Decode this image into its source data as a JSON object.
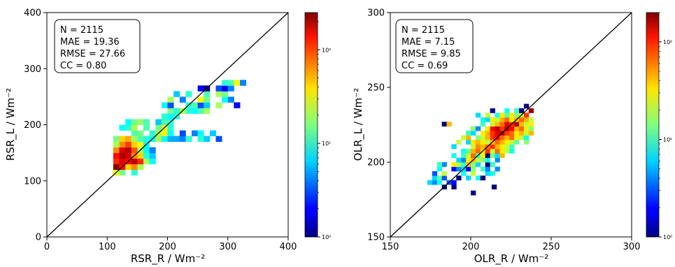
{
  "chart_data": [
    {
      "type": "heatmap",
      "title": "",
      "xlabel": "RSR_R / Wm⁻²",
      "ylabel": "RSR_L / Wm⁻²",
      "xlim": [
        0,
        400
      ],
      "ylim": [
        0,
        400
      ],
      "xticks": [
        "0",
        "100",
        "200",
        "300",
        "400"
      ],
      "yticks": [
        "0",
        "100",
        "200",
        "300",
        "400"
      ],
      "identity_line": true,
      "grid": false,
      "stats": [
        "N = 2115",
        "MAE = 19.36",
        "RMSE = 27.66",
        "CC = 0.80"
      ],
      "stats_position": "top-left",
      "colorbar": {
        "scale": "log",
        "min": 1,
        "max": 250,
        "labels": [
          "10⁰",
          "10¹",
          "10²"
        ],
        "cmap": "jet"
      },
      "bin_size": 10,
      "cells": [
        [
          110,
          110,
          30
        ],
        [
          120,
          110,
          15
        ],
        [
          140,
          110,
          10
        ],
        [
          110,
          120,
          250
        ],
        [
          120,
          120,
          120
        ],
        [
          130,
          120,
          40
        ],
        [
          140,
          120,
          60
        ],
        [
          150,
          120,
          20
        ],
        [
          110,
          130,
          100
        ],
        [
          120,
          130,
          150
        ],
        [
          130,
          130,
          120
        ],
        [
          140,
          130,
          180
        ],
        [
          150,
          130,
          100
        ],
        [
          160,
          130,
          20
        ],
        [
          170,
          130,
          8
        ],
        [
          110,
          140,
          120
        ],
        [
          120,
          140,
          200
        ],
        [
          130,
          140,
          160
        ],
        [
          140,
          140,
          60
        ],
        [
          150,
          140,
          40
        ],
        [
          160,
          140,
          10
        ],
        [
          170,
          140,
          6
        ],
        [
          110,
          150,
          60
        ],
        [
          120,
          150,
          150
        ],
        [
          130,
          150,
          190
        ],
        [
          140,
          150,
          80
        ],
        [
          150,
          150,
          20
        ],
        [
          160,
          150,
          8
        ],
        [
          170,
          150,
          4
        ],
        [
          110,
          160,
          20
        ],
        [
          120,
          160,
          60
        ],
        [
          130,
          160,
          90
        ],
        [
          140,
          160,
          40
        ],
        [
          150,
          160,
          30
        ],
        [
          160,
          160,
          8
        ],
        [
          110,
          170,
          15
        ],
        [
          120,
          170,
          40
        ],
        [
          130,
          170,
          50
        ],
        [
          140,
          170,
          20
        ],
        [
          150,
          170,
          12
        ],
        [
          160,
          170,
          10
        ],
        [
          170,
          170,
          8
        ],
        [
          180,
          170,
          20
        ],
        [
          190,
          170,
          8
        ],
        [
          200,
          170,
          5
        ],
        [
          210,
          170,
          5
        ],
        [
          220,
          170,
          4
        ],
        [
          230,
          170,
          10
        ],
        [
          250,
          170,
          10
        ],
        [
          260,
          170,
          6
        ],
        [
          280,
          170,
          3
        ],
        [
          140,
          180,
          12
        ],
        [
          150,
          180,
          15
        ],
        [
          170,
          180,
          10
        ],
        [
          180,
          180,
          20
        ],
        [
          190,
          180,
          30
        ],
        [
          200,
          180,
          8
        ],
        [
          220,
          180,
          3
        ],
        [
          240,
          180,
          4
        ],
        [
          250,
          180,
          8
        ],
        [
          270,
          180,
          6
        ],
        [
          120,
          190,
          8
        ],
        [
          130,
          190,
          10
        ],
        [
          140,
          190,
          20
        ],
        [
          160,
          190,
          12
        ],
        [
          180,
          190,
          15
        ],
        [
          190,
          190,
          30
        ],
        [
          200,
          190,
          10
        ],
        [
          130,
          200,
          8
        ],
        [
          140,
          200,
          15
        ],
        [
          150,
          200,
          18
        ],
        [
          160,
          200,
          12
        ],
        [
          180,
          200,
          6
        ],
        [
          190,
          200,
          12
        ],
        [
          200,
          200,
          10
        ],
        [
          190,
          210,
          10
        ],
        [
          200,
          210,
          8
        ],
        [
          210,
          210,
          10
        ],
        [
          200,
          220,
          15
        ],
        [
          210,
          220,
          10
        ],
        [
          220,
          220,
          20
        ],
        [
          230,
          220,
          10
        ],
        [
          240,
          220,
          8
        ],
        [
          250,
          220,
          12
        ],
        [
          260,
          220,
          20
        ],
        [
          190,
          230,
          8
        ],
        [
          200,
          230,
          3
        ],
        [
          230,
          230,
          10
        ],
        [
          240,
          230,
          12
        ],
        [
          250,
          230,
          3
        ],
        [
          260,
          230,
          6
        ],
        [
          280,
          230,
          20
        ],
        [
          310,
          230,
          2
        ],
        [
          200,
          240,
          20
        ],
        [
          220,
          240,
          4
        ],
        [
          250,
          240,
          30
        ],
        [
          260,
          240,
          15
        ],
        [
          290,
          240,
          8
        ],
        [
          300,
          240,
          4
        ],
        [
          210,
          250,
          6
        ],
        [
          230,
          250,
          10
        ],
        [
          260,
          250,
          12
        ],
        [
          280,
          250,
          20
        ],
        [
          290,
          250,
          15
        ],
        [
          250,
          260,
          2
        ],
        [
          260,
          260,
          1
        ],
        [
          280,
          260,
          3
        ],
        [
          290,
          260,
          2
        ],
        [
          300,
          260,
          4
        ],
        [
          290,
          270,
          10
        ],
        [
          300,
          270,
          12
        ],
        [
          310,
          270,
          30
        ],
        [
          320,
          270,
          4
        ]
      ]
    },
    {
      "type": "heatmap",
      "title": "",
      "xlabel": "OLR_R / Wm⁻²",
      "ylabel": "OLR_L / Wm⁻²",
      "xlim": [
        150,
        300
      ],
      "ylim": [
        150,
        300
      ],
      "xticks": [
        "150",
        "200",
        "250",
        "300"
      ],
      "yticks": [
        "150",
        "200",
        "250",
        "300"
      ],
      "identity_line": true,
      "grid": false,
      "stats": [
        "N = 2115",
        "MAE = 7.15",
        "RMSE = 9.85",
        "CC = 0.69"
      ],
      "stats_position": "top-left",
      "colorbar": {
        "scale": "log",
        "min": 1,
        "max": 200,
        "labels": [
          "10⁰",
          "10¹",
          "10²"
        ],
        "cmap": "jet"
      },
      "bin_size": 3,
      "cells": [
        [
          182,
          182,
          1
        ],
        [
          188,
          182,
          1
        ],
        [
          200,
          178,
          1
        ],
        [
          213,
          182,
          1
        ],
        [
          173,
          185,
          6
        ],
        [
          176,
          185,
          4
        ],
        [
          179,
          185,
          8
        ],
        [
          185,
          185,
          3
        ],
        [
          191,
          188,
          1
        ],
        [
          188,
          185,
          2
        ],
        [
          197,
          188,
          6
        ],
        [
          203,
          188,
          8
        ],
        [
          206,
          188,
          1
        ],
        [
          176,
          188,
          6
        ],
        [
          179,
          188,
          12
        ],
        [
          182,
          188,
          3
        ],
        [
          194,
          191,
          8
        ],
        [
          200,
          191,
          20
        ],
        [
          209,
          191,
          6
        ],
        [
          212,
          191,
          8
        ],
        [
          176,
          191,
          3
        ],
        [
          182,
          191,
          20
        ],
        [
          188,
          194,
          2
        ],
        [
          191,
          194,
          4
        ],
        [
          194,
          194,
          6
        ],
        [
          197,
          194,
          2
        ],
        [
          200,
          194,
          15
        ],
        [
          206,
          194,
          10
        ],
        [
          209,
          194,
          4
        ],
        [
          215,
          194,
          4
        ],
        [
          179,
          194,
          8
        ],
        [
          182,
          197,
          4
        ],
        [
          188,
          197,
          30
        ],
        [
          191,
          197,
          20
        ],
        [
          194,
          197,
          10
        ],
        [
          197,
          197,
          40
        ],
        [
          200,
          197,
          15
        ],
        [
          203,
          197,
          6
        ],
        [
          209,
          197,
          1
        ],
        [
          212,
          197,
          10
        ],
        [
          179,
          197,
          10
        ],
        [
          191,
          200,
          6
        ],
        [
          194,
          200,
          4
        ],
        [
          197,
          200,
          30
        ],
        [
          200,
          200,
          40
        ],
        [
          203,
          200,
          20
        ],
        [
          206,
          200,
          15
        ],
        [
          209,
          200,
          8
        ],
        [
          215,
          200,
          4
        ],
        [
          188,
          203,
          8
        ],
        [
          194,
          203,
          10
        ],
        [
          197,
          203,
          20
        ],
        [
          200,
          203,
          60
        ],
        [
          203,
          203,
          10
        ],
        [
          206,
          203,
          30
        ],
        [
          209,
          203,
          1
        ],
        [
          212,
          203,
          15
        ],
        [
          215,
          203,
          6
        ],
        [
          218,
          203,
          40
        ],
        [
          194,
          206,
          8
        ],
        [
          197,
          206,
          12
        ],
        [
          200,
          206,
          40
        ],
        [
          203,
          206,
          60
        ],
        [
          206,
          206,
          30
        ],
        [
          209,
          206,
          80
        ],
        [
          212,
          206,
          20
        ],
        [
          215,
          206,
          60
        ],
        [
          218,
          206,
          30
        ],
        [
          221,
          206,
          20
        ],
        [
          224,
          206,
          8
        ],
        [
          188,
          209,
          6
        ],
        [
          200,
          209,
          20
        ],
        [
          203,
          209,
          50
        ],
        [
          206,
          209,
          40
        ],
        [
          209,
          209,
          60
        ],
        [
          212,
          209,
          80
        ],
        [
          215,
          209,
          40
        ],
        [
          218,
          209,
          30
        ],
        [
          221,
          209,
          20
        ],
        [
          224,
          209,
          10
        ],
        [
          191,
          212,
          20
        ],
        [
          197,
          212,
          6
        ],
        [
          200,
          212,
          30
        ],
        [
          203,
          212,
          40
        ],
        [
          206,
          212,
          30
        ],
        [
          209,
          212,
          20
        ],
        [
          212,
          212,
          40
        ],
        [
          215,
          212,
          60
        ],
        [
          218,
          212,
          40
        ],
        [
          221,
          212,
          30
        ],
        [
          224,
          212,
          20
        ],
        [
          227,
          212,
          12
        ],
        [
          233,
          212,
          15
        ],
        [
          194,
          215,
          20
        ],
        [
          197,
          215,
          40
        ],
        [
          203,
          215,
          15
        ],
        [
          206,
          215,
          20
        ],
        [
          209,
          215,
          40
        ],
        [
          212,
          215,
          80
        ],
        [
          215,
          215,
          100
        ],
        [
          218,
          215,
          60
        ],
        [
          221,
          215,
          40
        ],
        [
          224,
          215,
          60
        ],
        [
          227,
          215,
          30
        ],
        [
          230,
          215,
          20
        ],
        [
          233,
          215,
          8
        ],
        [
          197,
          218,
          10
        ],
        [
          200,
          218,
          6
        ],
        [
          206,
          218,
          30
        ],
        [
          209,
          218,
          40
        ],
        [
          212,
          218,
          80
        ],
        [
          215,
          218,
          120
        ],
        [
          218,
          218,
          150
        ],
        [
          221,
          218,
          80
        ],
        [
          224,
          218,
          60
        ],
        [
          227,
          218,
          30
        ],
        [
          230,
          218,
          40
        ],
        [
          233,
          218,
          20
        ],
        [
          236,
          218,
          40
        ],
        [
          200,
          221,
          15
        ],
        [
          203,
          221,
          4
        ],
        [
          209,
          221,
          30
        ],
        [
          212,
          221,
          100
        ],
        [
          215,
          221,
          160
        ],
        [
          218,
          221,
          80
        ],
        [
          221,
          221,
          140
        ],
        [
          224,
          221,
          100
        ],
        [
          227,
          221,
          40
        ],
        [
          230,
          221,
          60
        ],
        [
          233,
          221,
          30
        ],
        [
          236,
          221,
          15
        ],
        [
          206,
          224,
          10
        ],
        [
          212,
          224,
          20
        ],
        [
          215,
          224,
          40
        ],
        [
          218,
          224,
          60
        ],
        [
          221,
          224,
          120
        ],
        [
          224,
          224,
          80
        ],
        [
          227,
          224,
          160
        ],
        [
          230,
          224,
          40
        ],
        [
          233,
          224,
          20
        ],
        [
          236,
          224,
          30
        ],
        [
          182,
          224,
          1
        ],
        [
          185,
          224,
          40
        ],
        [
          206,
          227,
          8
        ],
        [
          209,
          227,
          6
        ],
        [
          212,
          227,
          30
        ],
        [
          215,
          227,
          20
        ],
        [
          218,
          227,
          40
        ],
        [
          221,
          227,
          60
        ],
        [
          224,
          227,
          30
        ],
        [
          227,
          227,
          40
        ],
        [
          230,
          227,
          60
        ],
        [
          233,
          227,
          40
        ],
        [
          236,
          227,
          20
        ],
        [
          203,
          230,
          6
        ],
        [
          209,
          230,
          20
        ],
        [
          215,
          230,
          8
        ],
        [
          218,
          230,
          30
        ],
        [
          221,
          230,
          12
        ],
        [
          224,
          230,
          30
        ],
        [
          227,
          230,
          15
        ],
        [
          230,
          230,
          20
        ],
        [
          233,
          230,
          80
        ],
        [
          212,
          233,
          1
        ],
        [
          221,
          233,
          8
        ],
        [
          227,
          233,
          10
        ],
        [
          230,
          233,
          1
        ],
        [
          236,
          233,
          180
        ],
        [
          233,
          236,
          1
        ]
      ]
    }
  ]
}
